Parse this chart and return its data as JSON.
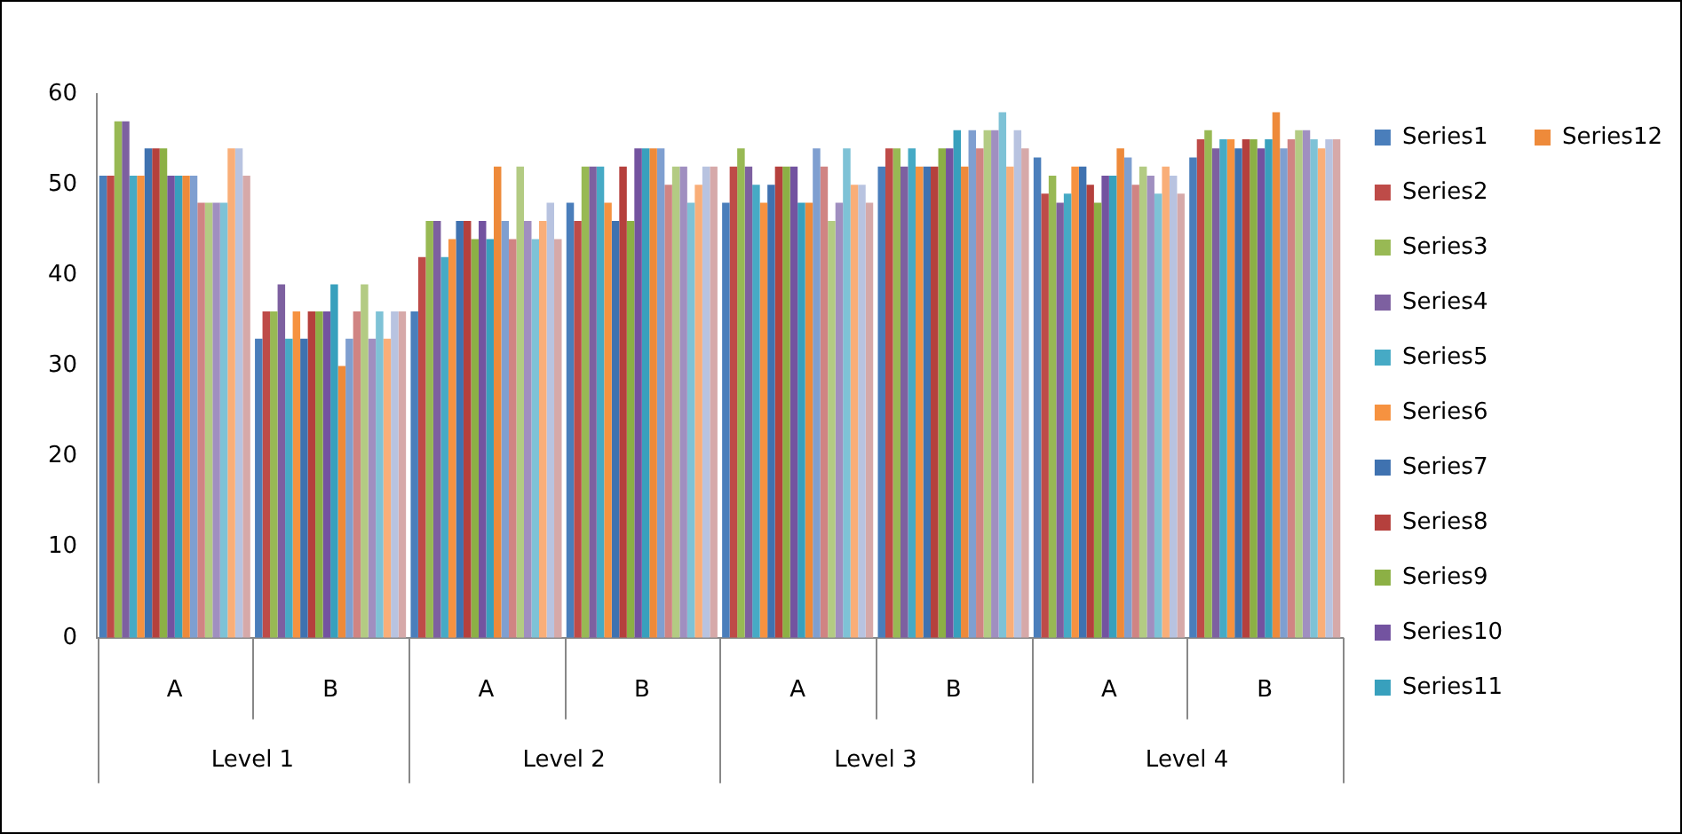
{
  "chart_data": {
    "type": "bar",
    "categories": [
      "A",
      "B",
      "A",
      "B",
      "A",
      "B",
      "A",
      "B"
    ],
    "annotations": [
      "Level 1",
      "Level 2",
      "Level 3",
      "Level 4"
    ],
    "ylim": [
      0,
      60
    ],
    "yticks": [
      0,
      10,
      20,
      30,
      40,
      50,
      60
    ],
    "grid": false,
    "legend": "right",
    "series": [
      {
        "name": "Series1",
        "color": "#4a7ebb",
        "values": [
          51,
          33,
          36,
          48,
          48,
          52,
          53,
          53
        ]
      },
      {
        "name": "Series2",
        "color": "#be4b48",
        "values": [
          51,
          36,
          42,
          46,
          52,
          54,
          49,
          55
        ]
      },
      {
        "name": "Series3",
        "color": "#98b954",
        "values": [
          57,
          36,
          46,
          52,
          54,
          54,
          51,
          56
        ]
      },
      {
        "name": "Series4",
        "color": "#7d60a0",
        "values": [
          57,
          39,
          46,
          52,
          52,
          52,
          48,
          54
        ]
      },
      {
        "name": "Series5",
        "color": "#46aac5",
        "values": [
          51,
          33,
          42,
          52,
          50,
          54,
          49,
          55
        ]
      },
      {
        "name": "Series6",
        "color": "#f69240",
        "values": [
          51,
          36,
          44,
          48,
          48,
          52,
          52,
          55
        ]
      },
      {
        "name": "Series7",
        "color": "#3f72b0",
        "values": [
          54,
          33,
          46,
          46,
          50,
          52,
          52,
          54
        ]
      },
      {
        "name": "Series8",
        "color": "#b5403d",
        "values": [
          54,
          36,
          46,
          52,
          52,
          52,
          50,
          55
        ]
      },
      {
        "name": "Series9",
        "color": "#8cb045",
        "values": [
          54,
          36,
          44,
          46,
          52,
          54,
          48,
          55
        ]
      },
      {
        "name": "Series10",
        "color": "#7353a0",
        "values": [
          51,
          36,
          46,
          54,
          52,
          54,
          51,
          54
        ]
      },
      {
        "name": "Series11",
        "color": "#38a0bd",
        "values": [
          51,
          39,
          44,
          54,
          48,
          56,
          51,
          55
        ]
      },
      {
        "name": "Series12",
        "color": "#ee8a3a",
        "values": [
          51,
          30,
          52,
          54,
          48,
          52,
          54,
          58
        ]
      },
      {
        "color": "#7f9fd0",
        "values": [
          51,
          33,
          46,
          54,
          54,
          56,
          53,
          54
        ]
      },
      {
        "color": "#d08483",
        "values": [
          48,
          36,
          44,
          50,
          52,
          54,
          50,
          55
        ]
      },
      {
        "color": "#b3cb83",
        "values": [
          48,
          39,
          52,
          52,
          46,
          56,
          52,
          56
        ]
      },
      {
        "color": "#a08fc0",
        "values": [
          48,
          33,
          46,
          52,
          48,
          56,
          51,
          56
        ]
      },
      {
        "color": "#7ec2d6",
        "values": [
          48,
          36,
          44,
          48,
          54,
          58,
          49,
          55
        ]
      },
      {
        "color": "#f9ae78",
        "values": [
          54,
          33,
          46,
          50,
          50,
          52,
          52,
          54
        ]
      },
      {
        "color": "#b8c3e0",
        "values": [
          54,
          36,
          48,
          52,
          50,
          56,
          51,
          55
        ]
      },
      {
        "color": "#d6a9a9",
        "values": [
          51,
          36,
          44,
          52,
          48,
          54,
          49,
          55
        ]
      }
    ]
  }
}
